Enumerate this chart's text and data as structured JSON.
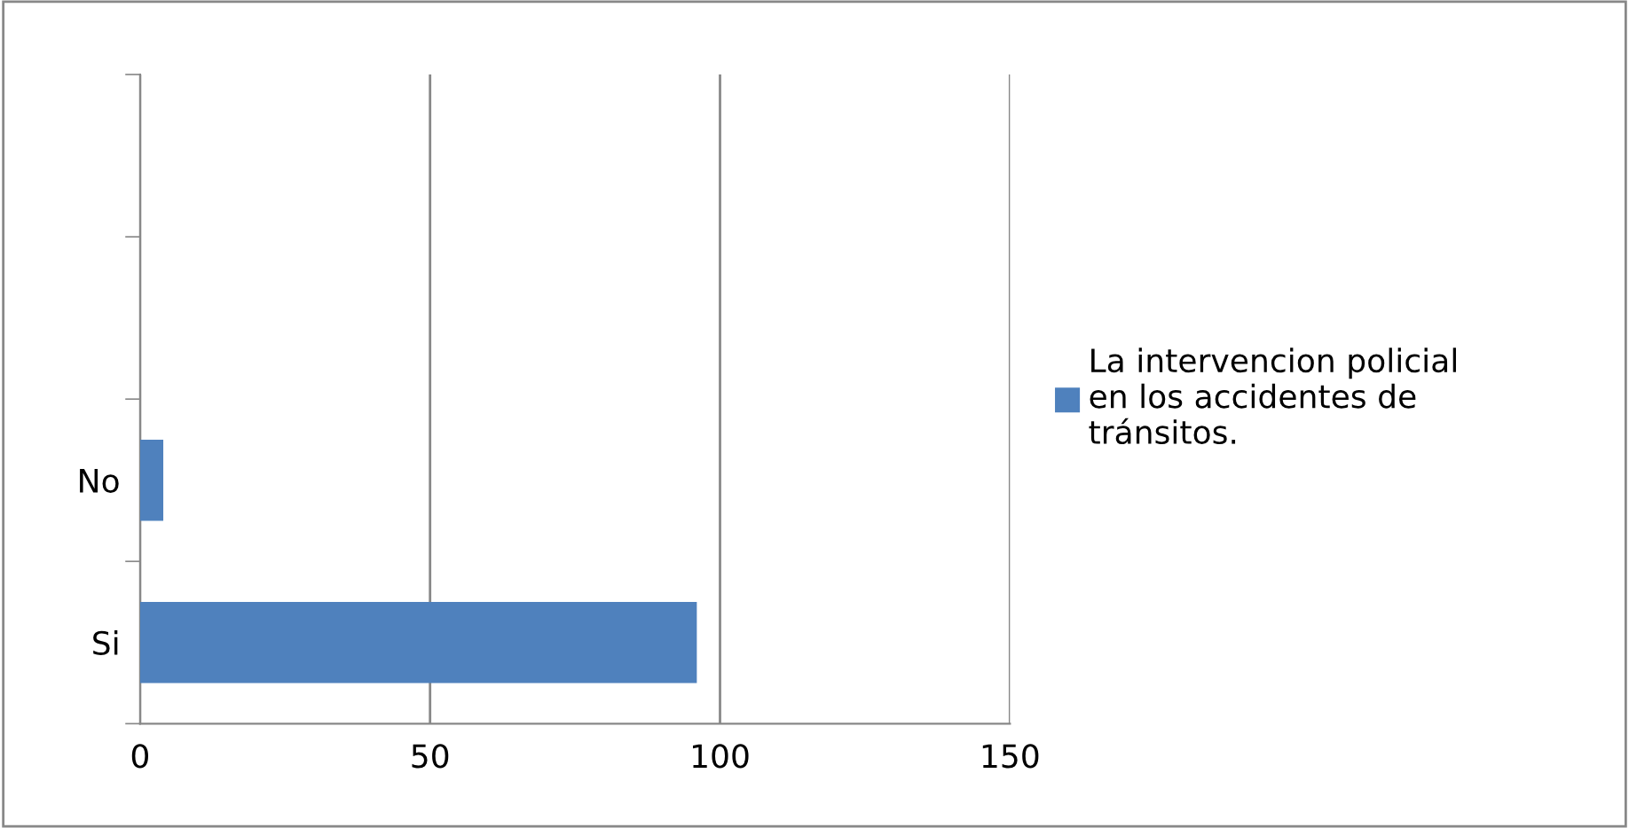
{
  "chart_data": {
    "type": "bar",
    "orientation": "horizontal",
    "categories": [
      null,
      null,
      "No",
      "Si"
    ],
    "series": [
      {
        "name": "La intervencion policial\nen los accidentes de\ntránsitos.",
        "color": "#4f81bd",
        "values": [
          null,
          null,
          4,
          96
        ]
      }
    ],
    "xlim": [
      0,
      150
    ],
    "xticks": [
      0,
      50,
      100,
      150
    ],
    "grid": "x",
    "legend": "right"
  }
}
